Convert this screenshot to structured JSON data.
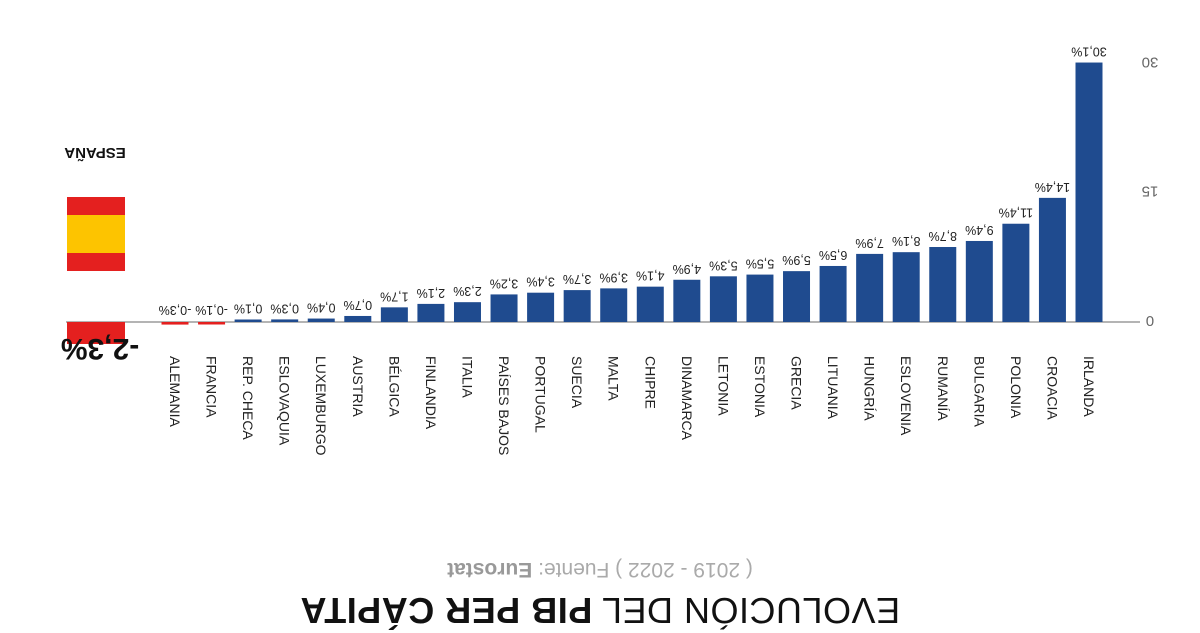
{
  "title": {
    "light": "EVOLUCIÓN DEL ",
    "bold": "PIB PER CÁPITA"
  },
  "subtitle": {
    "period": "( 2019 - 2022 ) Fuente: ",
    "source": "Eurostat"
  },
  "spain": {
    "name": "ESPAÑA",
    "value": -2.3,
    "value_label": "-2,3%",
    "colors": {
      "red": "#e4201f",
      "yellow": "#fdc400"
    }
  },
  "colors": {
    "bar": "#1f4b8f",
    "negative_bar": "#e4201f"
  },
  "chart_data": {
    "type": "bar",
    "orientation": "rendered upside-down (rotated 180°)",
    "categories": [
      "ALEMANIA",
      "FRANCIA",
      "REP. CHECA",
      "ESLOVAQUIA",
      "LUXEMBURGO",
      "AUSTRIA",
      "BÉLGICA",
      "FINLANDIA",
      "ITALIA",
      "PAÍSES BAJOS",
      "PORTUGAL",
      "SUECIA",
      "MALTA",
      "CHIPRE",
      "DINAMARCA",
      "LETONIA",
      "ESTONIA",
      "GRECIA",
      "LITUANIA",
      "HUNGRÍA",
      "ESLOVENIA",
      "RUMANÍA",
      "BULGARIA",
      "POLONIA",
      "CROACIA",
      "IRLANDA"
    ],
    "values": [
      -0.3,
      -0.1,
      0.1,
      0.3,
      0.4,
      0.7,
      1.7,
      2.1,
      2.3,
      3.2,
      3.4,
      3.7,
      3.9,
      4.1,
      4.9,
      5.3,
      5.5,
      5.9,
      6.5,
      7.9,
      8.1,
      8.7,
      9.4,
      11.4,
      14.4,
      30.1
    ],
    "value_labels": [
      "-0,3%",
      "-0,1%",
      "0,1%",
      "0,3%",
      "0,4%",
      "0,7%",
      "1,7%",
      "2,1%",
      "2,3%",
      "3,2%",
      "3,4%",
      "3,7%",
      "3,9%",
      "4,1%",
      "4,9%",
      "5,3%",
      "5,5%",
      "5,9%",
      "6,5%",
      "7,9%",
      "8,1%",
      "8,7%",
      "9,4%",
      "11,4%",
      "14,4%",
      "30,1%"
    ],
    "yticks": [
      0,
      15,
      30
    ],
    "ytick_labels": [
      "0",
      "15",
      "30"
    ],
    "ylim": [
      0,
      30.1
    ],
    "xlabel": "",
    "ylabel": ""
  }
}
